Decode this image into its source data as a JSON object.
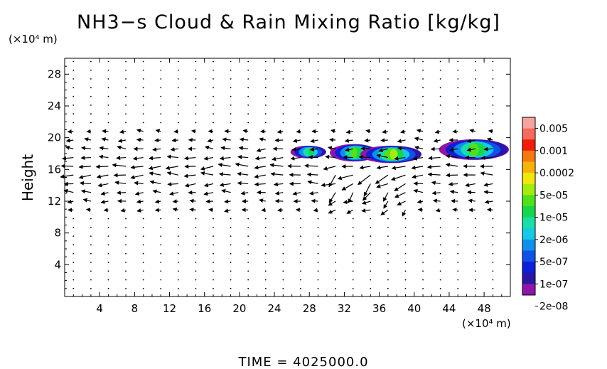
{
  "chart_data": {
    "type": "heatmap",
    "title": "NH3−s Cloud & Rain Mixing Ratio [kg/kg]",
    "ylabel": "Height",
    "y_unit": "(×10⁴ m)",
    "x_unit": "(×10⁴ m)",
    "xlim": [
      0,
      51
    ],
    "ylim": [
      0,
      30
    ],
    "x_ticks": [
      4,
      8,
      12,
      16,
      20,
      24,
      28,
      32,
      36,
      40,
      44,
      48
    ],
    "y_ticks": [
      4,
      8,
      12,
      16,
      20,
      24,
      28
    ],
    "colorbar": {
      "labels": [
        "0.005",
        "0.001",
        "0.0002",
        "5e-05",
        "1e-05",
        "2e-06",
        "5e-07",
        "1e-07",
        "2e-08"
      ],
      "colors_top_to_bottom": [
        "#f4a4a0",
        "#f46a5c",
        "#f11d0c",
        "#f37a10",
        "#f6b40a",
        "#f2e60f",
        "#a3ea10",
        "#50e11a",
        "#18d64b",
        "#19dea8",
        "#17c9e6",
        "#1091e9",
        "#1051e6",
        "#0d1fd8",
        "#2a17a6",
        "#8e16a8"
      ]
    },
    "shaded_regions": [
      {
        "x": [
          26,
          30
        ],
        "y": [
          17.4,
          19.0
        ],
        "peak": "1e-05"
      },
      {
        "x": [
          30.5,
          36
        ],
        "y": [
          17.0,
          19.2
        ],
        "peak": "5e-05"
      },
      {
        "x": [
          34,
          41
        ],
        "y": [
          16.8,
          19.0
        ],
        "peak": "0.0002"
      },
      {
        "x": [
          43,
          51
        ],
        "y": [
          17.2,
          19.8
        ],
        "peak": "5e-05"
      }
    ],
    "grid": false,
    "legend": "colorbar-right"
  },
  "time_label": "TIME  =  4025000.0"
}
